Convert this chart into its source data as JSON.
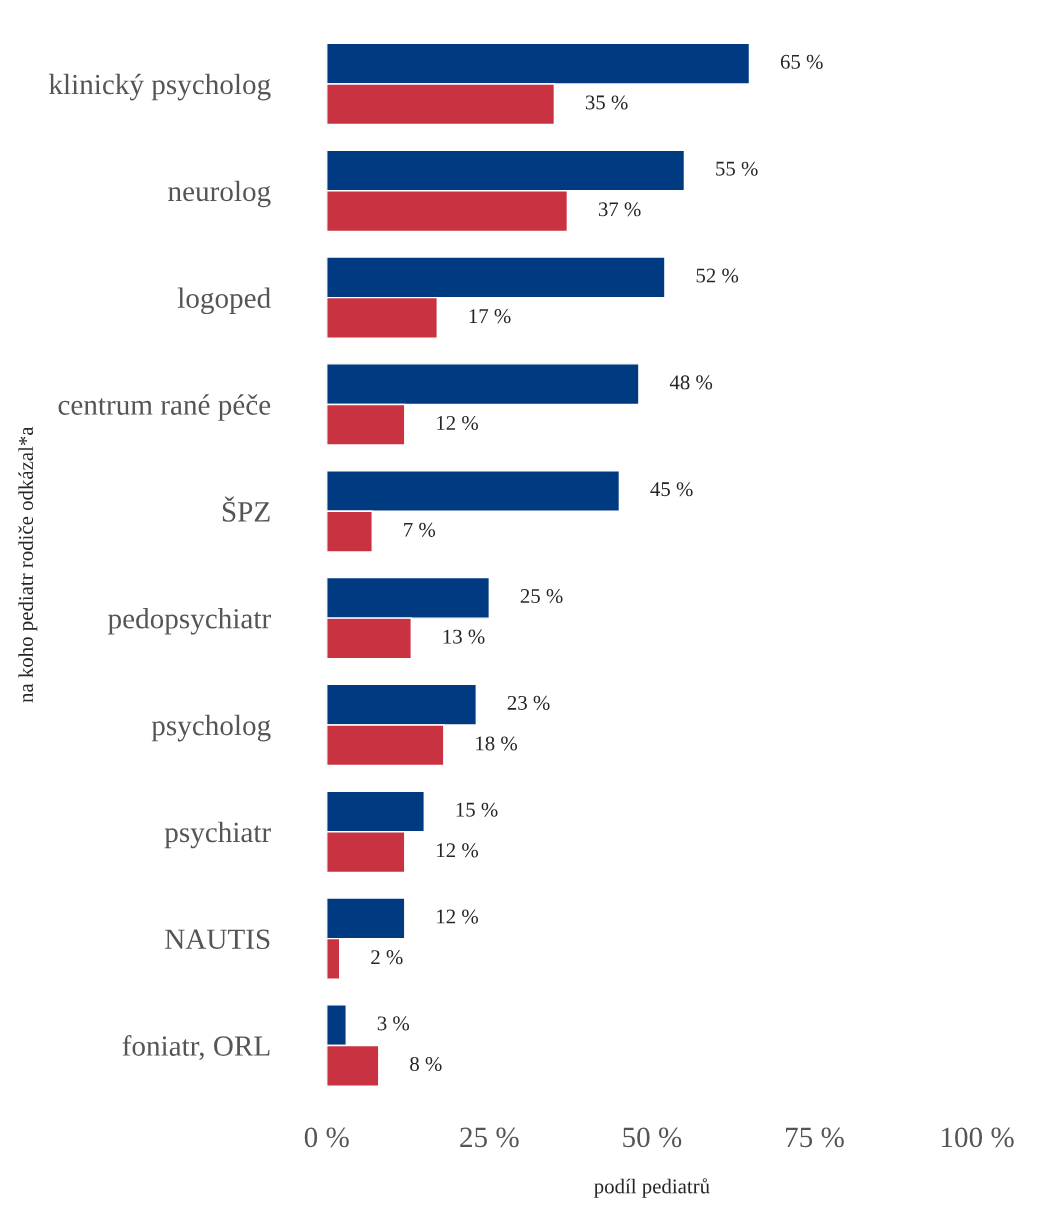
{
  "chart_data": {
    "type": "bar",
    "orientation": "horizontal",
    "xlabel": "podíl pediatrů",
    "ylabel": "na koho pediatr rodiče odkázal*a",
    "categories": [
      "klinický psycholog",
      "neurolog",
      "logoped",
      "centrum rané péče",
      "ŠPZ",
      "pedopsychiatr",
      "psycholog",
      "psychiatr",
      "NAUTIS",
      "foniatr, ORL"
    ],
    "series": [
      {
        "color": "#003a80",
        "values": [
          65,
          55,
          52,
          48,
          45,
          25,
          23,
          15,
          12,
          3
        ],
        "value_labels": [
          "65 %",
          "55 %",
          "52 %",
          "48 %",
          "45 %",
          "25 %",
          "23 %",
          "15 %",
          "12 %",
          "3 %"
        ]
      },
      {
        "color": "#c83241",
        "values": [
          35,
          37,
          17,
          12,
          7,
          13,
          18,
          12,
          2,
          8
        ],
        "value_labels": [
          "35 %",
          "37 %",
          "17 %",
          "12 %",
          "7 %",
          "13 %",
          "18 %",
          "12 %",
          "2 %",
          "8 %"
        ]
      }
    ],
    "xlim": [
      0,
      100
    ],
    "xticks": [
      {
        "value": 0,
        "label": "0 %"
      },
      {
        "value": 25,
        "label": "25 %"
      },
      {
        "value": 50,
        "label": "50 %"
      },
      {
        "value": 75,
        "label": "75 %"
      },
      {
        "value": 100,
        "label": "100 %"
      }
    ],
    "grid": false,
    "legend": false
  }
}
